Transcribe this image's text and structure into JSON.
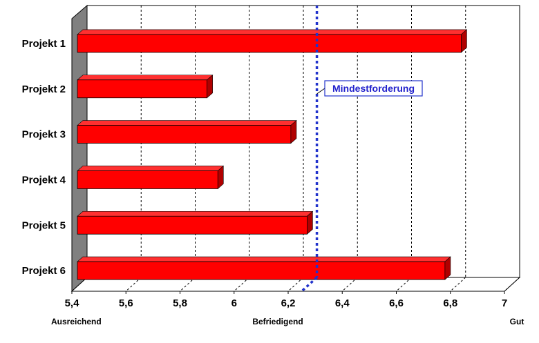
{
  "chart_data": {
    "type": "bar",
    "orientation": "horizontal",
    "categories": [
      "Projekt 1",
      "Projekt 2",
      "Projekt 3",
      "Projekt 4",
      "Projekt 5",
      "Projekt 6"
    ],
    "values": [
      6.84,
      5.9,
      6.21,
      5.94,
      6.27,
      6.78
    ],
    "x_ticks": [
      "5,4",
      "5,6",
      "5,8",
      "6",
      "6,2",
      "6,4",
      "6,6",
      "6,8",
      "7"
    ],
    "xlim": [
      5.4,
      7.0
    ],
    "grid": "vertical-dashed",
    "rating_labels": [
      {
        "text": "Ausreichend",
        "value": 5.4
      },
      {
        "text": "Befriedigend",
        "value": 6.2
      },
      {
        "text": "Gut",
        "value": 7.0
      }
    ],
    "reference_line": {
      "label": "Mindestforderung",
      "value": 6.25,
      "color": "#2233cc"
    },
    "bar_color": "#ff0000",
    "bar_side_color": "#b00000",
    "wall_color": "#808080"
  }
}
